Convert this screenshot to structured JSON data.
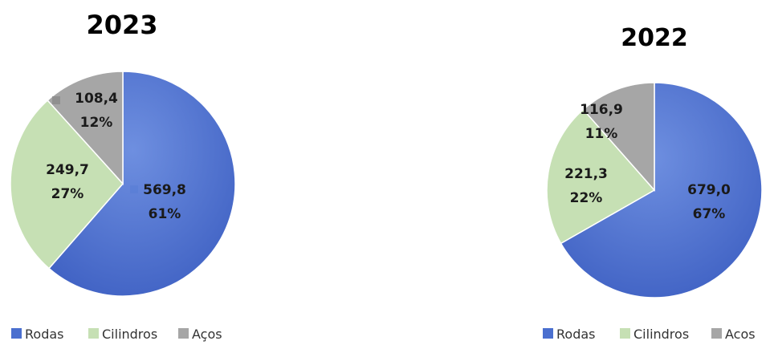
{
  "chart_data": [
    {
      "type": "pie",
      "title": "2023",
      "categories": [
        "Rodas",
        "Cilindros",
        "Aços"
      ],
      "values": [
        569.8,
        249.7,
        108.4
      ],
      "value_labels": [
        "569,8",
        "249,7",
        "108,4"
      ],
      "percent_labels": [
        "61%",
        "27%",
        "12%"
      ],
      "colors": [
        "#4a6fcf",
        "#c6e0b4",
        "#a6a6a6"
      ],
      "legend": [
        "Rodas",
        "Cilindros",
        "Aços"
      ],
      "legend_position": "bottom-left",
      "start_angle_deg": 0,
      "direction": "clockwise"
    },
    {
      "type": "pie",
      "title": "2022",
      "categories": [
        "Rodas",
        "Cilindros",
        "Acos"
      ],
      "values": [
        679.0,
        221.3,
        116.9
      ],
      "value_labels": [
        "679,0",
        "221,3",
        "116,9"
      ],
      "percent_labels": [
        "67%",
        "22%",
        "11%"
      ],
      "colors": [
        "#4a6fcf",
        "#c6e0b4",
        "#a6a6a6"
      ],
      "legend": [
        "Rodas",
        "Cilindros",
        "Acos"
      ],
      "legend_position": "bottom-right",
      "start_angle_deg": 0,
      "direction": "clockwise"
    }
  ]
}
